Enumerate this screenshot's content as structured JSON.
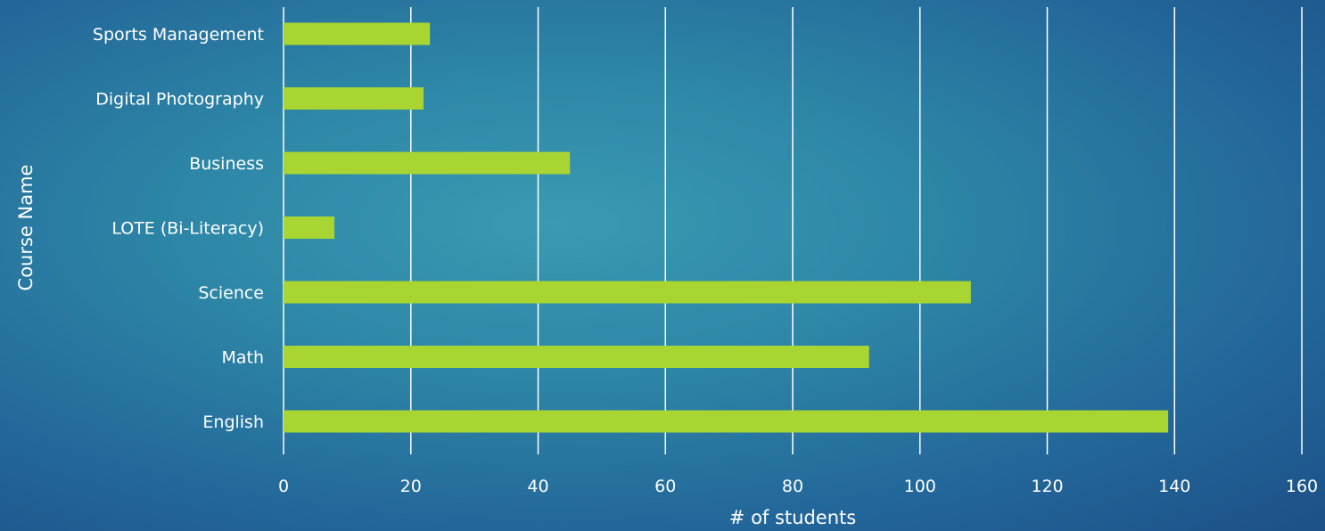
{
  "colors": {
    "bar": "#a8d531",
    "grid": "#ffffff",
    "text": "#ffffff",
    "background": "#2b82a3"
  },
  "chart_data": {
    "type": "bar",
    "orientation": "horizontal",
    "categories": [
      "Sports Management",
      "Digital Photography",
      "Business",
      "LOTE (Bi-Literacy)",
      "Science",
      "Math",
      "English"
    ],
    "values": [
      23,
      22,
      45,
      8,
      108,
      92,
      139
    ],
    "xlabel": "# of students",
    "ylabel": "Course Name",
    "xlim": [
      0,
      160
    ],
    "xticks": [
      0,
      20,
      40,
      60,
      80,
      100,
      120,
      140,
      160
    ],
    "grid": "vertical",
    "legend": "none"
  }
}
